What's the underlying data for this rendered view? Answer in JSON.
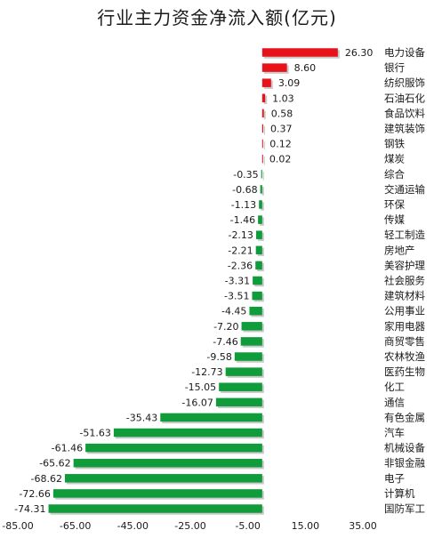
{
  "chart_data": {
    "type": "bar",
    "orientation": "horizontal",
    "title": "行业主力资金净流入额(亿元)",
    "xlabel": "",
    "ylabel": "",
    "xlim": [
      -85,
      35
    ],
    "xticks": [
      "-85.00",
      "-65.00",
      "-45.00",
      "-25.00",
      "-5.00",
      "15.00",
      "35.00"
    ],
    "grid": false,
    "legend": "none",
    "positive_color": "#e8121b",
    "negative_color": "#109c3a",
    "categories": [
      "电力设备",
      "银行",
      "纺织服饰",
      "石油石化",
      "食品饮料",
      "建筑装饰",
      "钢铁",
      "煤炭",
      "综合",
      "交通运输",
      "环保",
      "传媒",
      "轻工制造",
      "房地产",
      "美容护理",
      "社会服务",
      "建筑材料",
      "公用事业",
      "家用电器",
      "商贸零售",
      "农林牧渔",
      "医药生物",
      "化工",
      "通信",
      "有色金属",
      "汽车",
      "机械设备",
      "非银金融",
      "电子",
      "计算机",
      "国防军工"
    ],
    "values": [
      26.3,
      8.6,
      3.09,
      1.03,
      0.58,
      0.37,
      0.12,
      0.02,
      -0.35,
      -0.68,
      -1.13,
      -1.46,
      -2.13,
      -2.21,
      -2.36,
      -3.31,
      -3.51,
      -4.45,
      -7.2,
      -7.46,
      -9.58,
      -12.73,
      -15.05,
      -16.07,
      -35.43,
      -51.63,
      -61.46,
      -65.62,
      -68.62,
      -72.66,
      -74.31
    ],
    "value_labels": [
      "26.30",
      "8.60",
      "3.09",
      "1.03",
      "0.58",
      "0.37",
      "0.12",
      "0.02",
      "-0.35",
      "-0.68",
      "-1.13",
      "-1.46",
      "-2.13",
      "-2.21",
      "-2.36",
      "-3.31",
      "-3.51",
      "-4.45",
      "-7.20",
      "-7.46",
      "-9.58",
      "-12.73",
      "-15.05",
      "-16.07",
      "-35.43",
      "-51.63",
      "-61.46",
      "-65.62",
      "-68.62",
      "-72.66",
      "-74.31"
    ]
  }
}
